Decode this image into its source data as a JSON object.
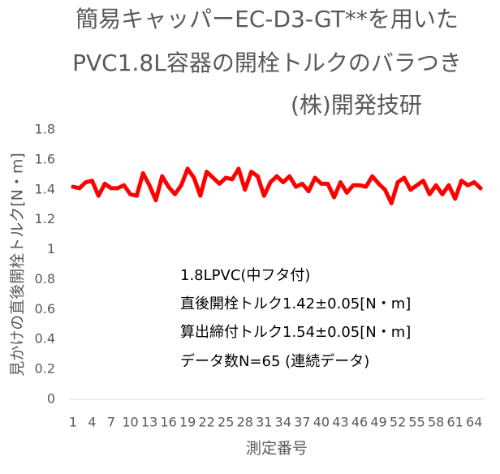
{
  "chart_data": {
    "type": "line",
    "title_lines": [
      "簡易キャッパーEC-D3-GT**を用いた",
      "PVC1.8L容器の開栓トルクのバラつき",
      "(株)開発技研"
    ],
    "xlabel": "測定番号",
    "ylabel": "見かけの直後開栓トルク[N・m]",
    "x": [
      1,
      2,
      3,
      4,
      5,
      6,
      7,
      8,
      9,
      10,
      11,
      12,
      13,
      14,
      15,
      16,
      17,
      18,
      19,
      20,
      21,
      22,
      23,
      24,
      25,
      26,
      27,
      28,
      29,
      30,
      31,
      32,
      33,
      34,
      35,
      36,
      37,
      38,
      39,
      40,
      41,
      42,
      43,
      44,
      45,
      46,
      47,
      48,
      49,
      50,
      51,
      52,
      53,
      54,
      55,
      56,
      57,
      58,
      59,
      60,
      61,
      62,
      63,
      64,
      65
    ],
    "x_tick_labels": [
      "1",
      "4",
      "7",
      "10",
      "13",
      "16",
      "19",
      "22",
      "25",
      "28",
      "31",
      "34",
      "37",
      "40",
      "43",
      "46",
      "49",
      "52",
      "55",
      "58",
      "61",
      "64"
    ],
    "y_tick_labels": [
      "0",
      "0.2",
      "0.4",
      "0.6",
      "0.8",
      "1",
      "1.2",
      "1.4",
      "1.6",
      "1.8"
    ],
    "ylim": [
      0,
      1.8
    ],
    "grid": false,
    "legend": "none",
    "series": [
      {
        "color": "#ff0000",
        "values": [
          1.42,
          1.41,
          1.45,
          1.46,
          1.36,
          1.44,
          1.41,
          1.41,
          1.43,
          1.37,
          1.36,
          1.51,
          1.43,
          1.33,
          1.49,
          1.42,
          1.37,
          1.43,
          1.54,
          1.48,
          1.36,
          1.52,
          1.48,
          1.44,
          1.48,
          1.47,
          1.54,
          1.4,
          1.52,
          1.49,
          1.36,
          1.45,
          1.49,
          1.45,
          1.49,
          1.42,
          1.44,
          1.39,
          1.48,
          1.44,
          1.44,
          1.35,
          1.45,
          1.38,
          1.43,
          1.43,
          1.42,
          1.49,
          1.44,
          1.4,
          1.31,
          1.45,
          1.48,
          1.4,
          1.43,
          1.46,
          1.37,
          1.43,
          1.37,
          1.43,
          1.34,
          1.46,
          1.43,
          1.45,
          1.41
        ]
      }
    ],
    "annotations": [
      "1.8LPVC(中フタ付)",
      "直後開栓トルク1.42±0.05[N・m]",
      "算出締付トルク1.54±0.05[N・m]",
      "データ数N=65 (連続データ)"
    ]
  },
  "colors": {
    "text": "#595959",
    "axis": "#d9d9d9",
    "annotation_text": "#000000"
  }
}
